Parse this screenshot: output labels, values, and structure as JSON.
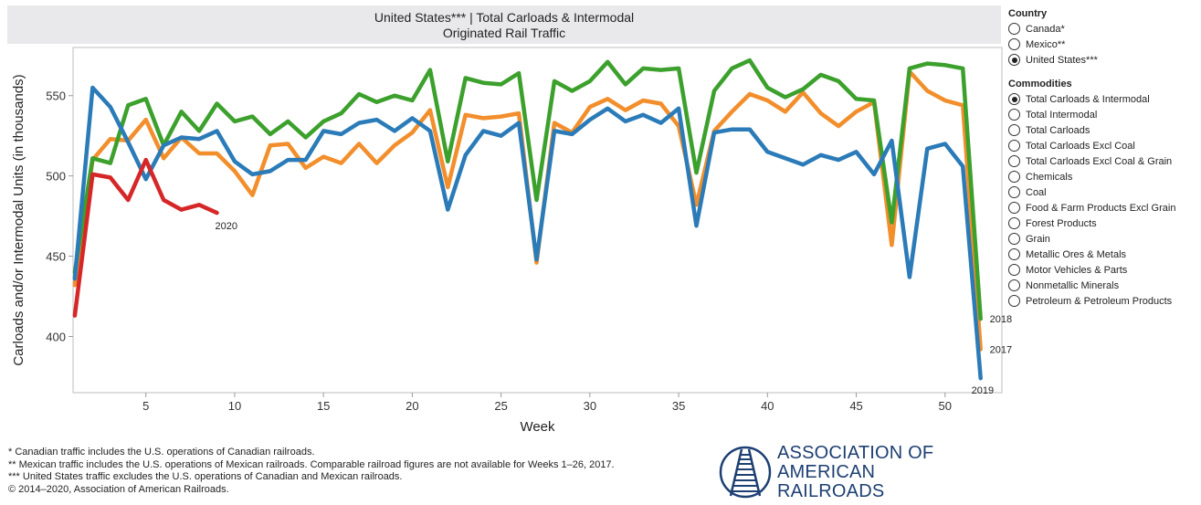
{
  "title": {
    "line1": "United States*** | Total Carloads & Intermodal",
    "line2": "Originated Rail Traffic"
  },
  "sidebar": {
    "country_heading": "Country",
    "countries": [
      {
        "label": "Canada*",
        "selected": false
      },
      {
        "label": "Mexico**",
        "selected": false
      },
      {
        "label": "United States***",
        "selected": true
      }
    ],
    "commodities_heading": "Commodities",
    "commodities": [
      {
        "label": "Total Carloads & Intermodal",
        "selected": true
      },
      {
        "label": "Total Intermodal",
        "selected": false
      },
      {
        "label": "Total Carloads",
        "selected": false
      },
      {
        "label": "Total Carloads Excl Coal",
        "selected": false
      },
      {
        "label": "Total Carloads Excl Coal & Grain",
        "selected": false
      },
      {
        "label": "Chemicals",
        "selected": false
      },
      {
        "label": "Coal",
        "selected": false
      },
      {
        "label": "Food & Farm Products Excl Grain",
        "selected": false
      },
      {
        "label": "Forest Products",
        "selected": false
      },
      {
        "label": "Grain",
        "selected": false
      },
      {
        "label": "Metallic Ores & Metals",
        "selected": false
      },
      {
        "label": "Motor Vehicles & Parts",
        "selected": false
      },
      {
        "label": "Nonmetallic Minerals",
        "selected": false
      },
      {
        "label": "Petroleum & Petroleum Products",
        "selected": false
      }
    ]
  },
  "footnotes": [
    "* Canadian traffic includes the U.S. operations of Canadian railroads.",
    "** Mexican traffic includes the U.S. operations of Mexican railroads. Comparable railroad figures are not available for Weeks 1–26, 2017.",
    "*** United States traffic excludes the U.S. operations of Canadian and Mexican railroads.",
    "© 2014–2020, Association of American Railroads."
  ],
  "logo": {
    "line1": "ASSOCIATION OF",
    "line2": "AMERICAN RAILROADS",
    "color": "#1d3f72"
  },
  "chart_data": {
    "type": "line",
    "xlabel": "Week",
    "ylabel": "Carloads and/or Intermodal Units (in thousands)",
    "xlim": [
      0.9,
      53.2
    ],
    "ylim": [
      365,
      580
    ],
    "xticks": [
      5,
      10,
      15,
      20,
      25,
      30,
      35,
      40,
      45,
      50
    ],
    "yticks": [
      400,
      450,
      500,
      550
    ],
    "grid": false,
    "series": [
      {
        "name": "2017",
        "color": "#f28e2b",
        "end_label": "2017",
        "x": [
          1,
          2,
          3,
          4,
          5,
          6,
          7,
          8,
          9,
          10,
          11,
          12,
          13,
          14,
          15,
          16,
          17,
          18,
          19,
          20,
          21,
          22,
          23,
          24,
          25,
          26,
          27,
          28,
          29,
          30,
          31,
          32,
          33,
          34,
          35,
          36,
          37,
          38,
          39,
          40,
          41,
          42,
          43,
          44,
          45,
          46,
          47,
          48,
          49,
          50,
          51,
          52
        ],
        "values": [
          432,
          510,
          523,
          522,
          535,
          511,
          524,
          514,
          514,
          503,
          488,
          519,
          520,
          505,
          512,
          508,
          520,
          508,
          519,
          527,
          541,
          493,
          538,
          536,
          537,
          539,
          446,
          533,
          527,
          543,
          548,
          541,
          547,
          545,
          531,
          482,
          528,
          540,
          551,
          547,
          540,
          552,
          539,
          531,
          540,
          546,
          457,
          565,
          553,
          547,
          544,
          392
        ]
      },
      {
        "name": "2018",
        "color": "#3ca02c",
        "end_label": "2018",
        "x": [
          1,
          2,
          3,
          4,
          5,
          6,
          7,
          8,
          9,
          10,
          11,
          12,
          13,
          14,
          15,
          16,
          17,
          18,
          19,
          20,
          21,
          22,
          23,
          24,
          25,
          26,
          27,
          28,
          29,
          30,
          31,
          32,
          33,
          34,
          35,
          36,
          37,
          38,
          39,
          40,
          41,
          42,
          43,
          44,
          45,
          46,
          47,
          48,
          49,
          50,
          51,
          52
        ],
        "values": [
          440,
          511,
          508,
          544,
          548,
          519,
          540,
          528,
          545,
          534,
          537,
          526,
          534,
          524,
          534,
          539,
          551,
          546,
          550,
          547,
          566,
          509,
          561,
          558,
          557,
          564,
          485,
          559,
          553,
          559,
          571,
          557,
          567,
          566,
          567,
          502,
          553,
          567,
          572,
          555,
          549,
          554,
          563,
          559,
          548,
          547,
          471,
          567,
          570,
          569,
          567,
          411
        ]
      },
      {
        "name": "2019",
        "color": "#2a7bb8",
        "end_label": "2019",
        "x": [
          1,
          2,
          3,
          4,
          5,
          6,
          7,
          8,
          9,
          10,
          11,
          12,
          13,
          14,
          15,
          16,
          17,
          18,
          19,
          20,
          21,
          22,
          23,
          24,
          25,
          26,
          27,
          28,
          29,
          30,
          31,
          32,
          33,
          34,
          35,
          36,
          37,
          38,
          39,
          40,
          41,
          42,
          43,
          44,
          45,
          46,
          47,
          48,
          49,
          50,
          51,
          52
        ],
        "values": [
          436,
          555,
          543,
          521,
          498,
          519,
          524,
          523,
          528,
          509,
          501,
          503,
          510,
          510,
          528,
          526,
          533,
          535,
          528,
          536,
          528,
          479,
          513,
          528,
          525,
          533,
          448,
          528,
          526,
          535,
          542,
          534,
          538,
          533,
          542,
          469,
          527,
          529,
          529,
          515,
          511,
          507,
          513,
          510,
          515,
          501,
          522,
          437,
          517,
          520,
          506,
          374
        ]
      },
      {
        "name": "2020",
        "color": "#d62728",
        "end_label": "2020",
        "x": [
          1,
          2,
          3,
          4,
          5,
          6,
          7,
          8,
          9
        ],
        "values": [
          413,
          501,
          499,
          485,
          510,
          485,
          479,
          482,
          477
        ]
      }
    ]
  }
}
